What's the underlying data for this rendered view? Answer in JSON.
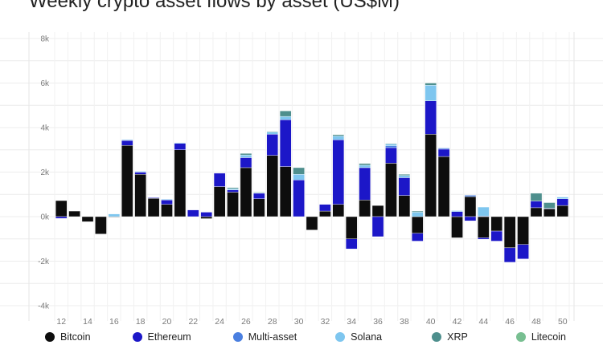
{
  "chart_data": {
    "type": "bar",
    "stacked": true,
    "title": "Weekly crypto asset flows by asset (US$M)",
    "xlabel": "",
    "ylabel": "",
    "ylim": [
      -4000,
      8000
    ],
    "yticks": [
      -4000,
      -2000,
      0,
      2000,
      4000,
      6000,
      8000
    ],
    "ytick_labels": [
      "-4k",
      "-2k",
      "0k",
      "2k",
      "4k",
      "6k",
      "8k"
    ],
    "grid": true,
    "legend_position": "bottom",
    "categories": [
      12,
      13,
      14,
      15,
      16,
      17,
      18,
      19,
      20,
      21,
      22,
      23,
      24,
      25,
      26,
      27,
      28,
      29,
      30,
      31,
      32,
      33,
      34,
      35,
      36,
      37,
      38,
      39,
      40,
      41,
      42,
      43,
      44,
      45,
      46,
      47,
      48,
      49,
      50
    ],
    "xtick_labels": [
      "12",
      "14",
      "16",
      "18",
      "20",
      "22",
      "24",
      "26",
      "28",
      "30",
      "32",
      "34",
      "36",
      "38",
      "40",
      "42",
      "44",
      "46",
      "48",
      "50"
    ],
    "series": [
      {
        "name": "Bitcoin",
        "color": "#0d0d0d",
        "values": [
          720,
          250,
          -230,
          -780,
          -20,
          3200,
          1900,
          820,
          550,
          3000,
          0,
          -90,
          1350,
          1100,
          2200,
          800,
          2750,
          2250,
          0,
          -600,
          250,
          550,
          -1000,
          750,
          500,
          2400,
          950,
          -750,
          3700,
          2700,
          -950,
          900,
          -950,
          -650,
          -1400,
          -1250,
          400,
          350,
          500
        ]
      },
      {
        "name": "Ethereum",
        "color": "#1c17c8",
        "values": [
          -80,
          0,
          0,
          0,
          0,
          220,
          100,
          30,
          200,
          300,
          300,
          200,
          600,
          100,
          450,
          250,
          950,
          2100,
          1650,
          0,
          300,
          2900,
          -450,
          1450,
          -900,
          700,
          800,
          -350,
          1500,
          330,
          230,
          -190,
          -70,
          -450,
          -650,
          -650,
          300,
          0,
          300
        ]
      },
      {
        "name": "Multi-asset",
        "color": "#4a7fe0",
        "values": [
          0,
          0,
          0,
          0,
          0,
          30,
          20,
          0,
          0,
          0,
          0,
          0,
          0,
          0,
          0,
          0,
          0,
          0,
          0,
          0,
          0,
          0,
          0,
          0,
          0,
          80,
          0,
          0,
          0,
          50,
          0,
          60,
          30,
          0,
          0,
          0,
          0,
          30,
          0
        ]
      },
      {
        "name": "Solana",
        "color": "#7ec6ef",
        "values": [
          0,
          0,
          0,
          0,
          120,
          20,
          30,
          0,
          30,
          20,
          0,
          0,
          0,
          50,
          120,
          30,
          100,
          150,
          250,
          0,
          0,
          170,
          0,
          110,
          0,
          80,
          100,
          200,
          700,
          0,
          40,
          0,
          400,
          0,
          0,
          0,
          0,
          0,
          80
        ]
      },
      {
        "name": "XRP",
        "color": "#4e8f8d",
        "values": [
          0,
          0,
          0,
          0,
          0,
          0,
          0,
          0,
          0,
          0,
          0,
          0,
          0,
          50,
          70,
          20,
          30,
          250,
          300,
          0,
          0,
          60,
          0,
          80,
          0,
          30,
          50,
          50,
          100,
          0,
          0,
          0,
          0,
          0,
          0,
          0,
          350,
          250,
          0
        ]
      },
      {
        "name": "Litecoin",
        "color": "#78bf91",
        "values": [
          0,
          0,
          0,
          0,
          0,
          0,
          0,
          0,
          0,
          0,
          0,
          0,
          0,
          0,
          0,
          0,
          0,
          0,
          0,
          0,
          0,
          0,
          0,
          0,
          0,
          0,
          0,
          0,
          0,
          0,
          0,
          0,
          0,
          0,
          0,
          0,
          0,
          0,
          0
        ]
      }
    ]
  }
}
